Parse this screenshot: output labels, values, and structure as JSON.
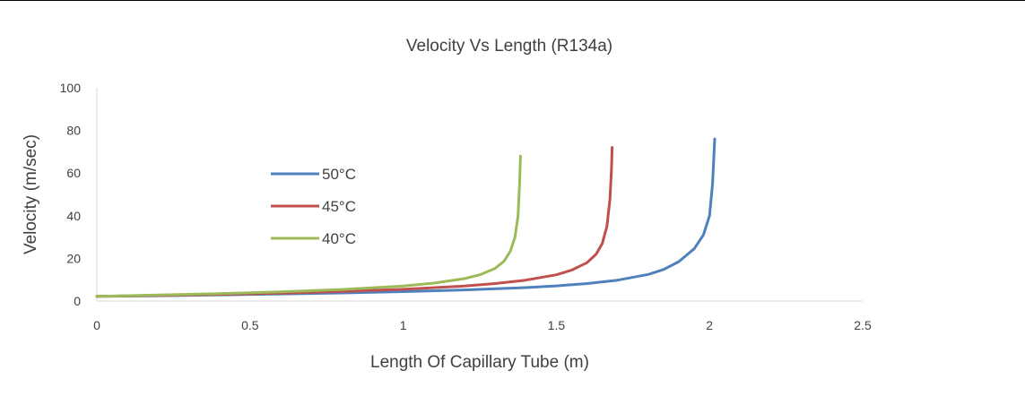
{
  "chart_data": {
    "type": "line",
    "title": "Velocity Vs Length (R134a)",
    "xlabel": "Length Of Capillary Tube (m)",
    "ylabel": "Velocity (m/sec)",
    "xlim": [
      0,
      2.5
    ],
    "ylim": [
      0,
      100
    ],
    "x_ticks": [
      "0",
      "0.5",
      "1",
      "1.5",
      "2",
      "2.5"
    ],
    "y_ticks": [
      "0",
      "20",
      "40",
      "60",
      "80",
      "100"
    ],
    "grid": false,
    "legend_position": "left",
    "series": [
      {
        "name": "50°C",
        "color": "#4F81BD",
        "points": [
          [
            0,
            2.2
          ],
          [
            0.2,
            2.5
          ],
          [
            0.4,
            2.9
          ],
          [
            0.6,
            3.3
          ],
          [
            0.8,
            3.8
          ],
          [
            1.0,
            4.4
          ],
          [
            1.2,
            5.2
          ],
          [
            1.4,
            6.3
          ],
          [
            1.5,
            7.1
          ],
          [
            1.6,
            8.2
          ],
          [
            1.7,
            9.8
          ],
          [
            1.8,
            12.5
          ],
          [
            1.85,
            14.8
          ],
          [
            1.9,
            18.5
          ],
          [
            1.95,
            24.5
          ],
          [
            1.98,
            31
          ],
          [
            2.0,
            40
          ],
          [
            2.01,
            55
          ],
          [
            2.015,
            70
          ],
          [
            2.017,
            76
          ]
        ]
      },
      {
        "name": "45°C",
        "color": "#C0504D",
        "points": [
          [
            0,
            2.2
          ],
          [
            0.2,
            2.6
          ],
          [
            0.4,
            3.1
          ],
          [
            0.6,
            3.7
          ],
          [
            0.8,
            4.5
          ],
          [
            1.0,
            5.5
          ],
          [
            1.2,
            7.0
          ],
          [
            1.3,
            8.2
          ],
          [
            1.4,
            9.8
          ],
          [
            1.5,
            12.3
          ],
          [
            1.55,
            14.5
          ],
          [
            1.6,
            18.0
          ],
          [
            1.63,
            22.0
          ],
          [
            1.65,
            27.0
          ],
          [
            1.665,
            35
          ],
          [
            1.675,
            48
          ],
          [
            1.68,
            62
          ],
          [
            1.682,
            72
          ]
        ]
      },
      {
        "name": "40°C",
        "color": "#9BBB59",
        "points": [
          [
            0,
            2.2
          ],
          [
            0.2,
            2.8
          ],
          [
            0.4,
            3.5
          ],
          [
            0.6,
            4.3
          ],
          [
            0.8,
            5.4
          ],
          [
            1.0,
            7.0
          ],
          [
            1.1,
            8.4
          ],
          [
            1.2,
            10.5
          ],
          [
            1.25,
            12.3
          ],
          [
            1.3,
            15.3
          ],
          [
            1.33,
            18.8
          ],
          [
            1.35,
            23.5
          ],
          [
            1.365,
            30
          ],
          [
            1.375,
            40
          ],
          [
            1.38,
            55
          ],
          [
            1.383,
            68
          ]
        ]
      }
    ]
  }
}
